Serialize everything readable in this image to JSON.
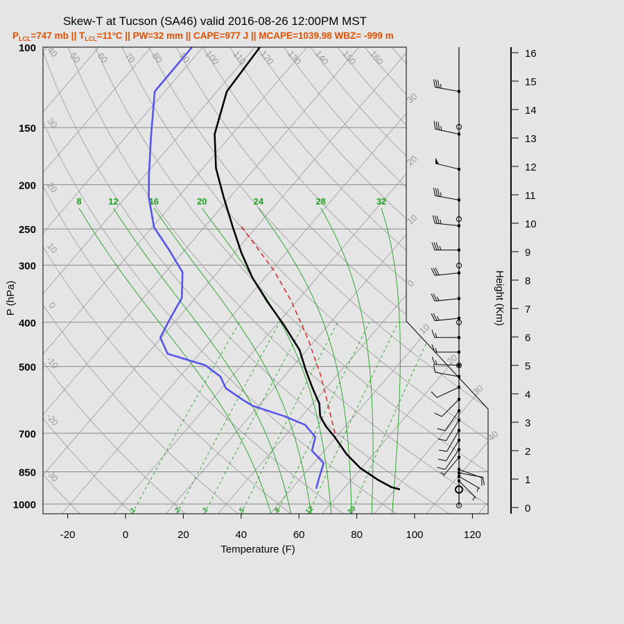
{
  "title": "Skew-T at Tucson (SA46) valid 2016-08-26 12:00PM MST",
  "subtitle": {
    "p": "P",
    "p_sub": "LCL",
    "p_val": "=747 mb || T",
    "t_sub": "LCL",
    "t_val": "=11",
    "deg": "o",
    "rest": "C || PW=32 mm || CAPE=977 J || MCAPE=1039.98 WBZ= -999 m"
  },
  "colors": {
    "temperature": "#000000",
    "dewpoint": "#5555ee",
    "parcel": "#e02020",
    "moist_adiabat": "#1ea01e",
    "mixing_ratio": "#1ea01e",
    "grid": "#999999",
    "subtitle": "#e05000"
  },
  "chart_data": {
    "type": "line",
    "chart_kind": "skew-T log-P",
    "xlabel": "Temperature (F)",
    "ylabel": "P (hPa)",
    "y2label": "Height (Km)",
    "x_ticks": [
      "-20",
      "0",
      "20",
      "40",
      "60",
      "80",
      "100",
      "120"
    ],
    "x_tick_values": [
      -20,
      0,
      20,
      40,
      60,
      80,
      100,
      120
    ],
    "xlim_F_at_bottom": [
      -29,
      125
    ],
    "ylim_hPa": [
      1050,
      100
    ],
    "y_scale": "log",
    "y_ticks": [
      "100",
      "150",
      "200",
      "250",
      "300",
      "400",
      "500",
      "700",
      "850",
      "1000"
    ],
    "y_tick_values": [
      100,
      150,
      200,
      250,
      300,
      400,
      500,
      700,
      850,
      1000
    ],
    "height_ticks": [
      "0",
      "1",
      "2",
      "3",
      "4",
      "5",
      "6",
      "7",
      "8",
      "9",
      "10",
      "11",
      "12",
      "13",
      "14",
      "15",
      "16"
    ],
    "isotherm_labels_C": [
      "30",
      "20",
      "10",
      "0",
      "10",
      "20",
      "30",
      "40"
    ],
    "isotherm_label_values_C": [
      -30,
      -20,
      -10,
      0,
      10,
      20,
      30,
      40
    ],
    "dry_adiabat_left_labels": [
      "40",
      "30",
      "20",
      "10",
      "0",
      "-10",
      "-20",
      "-30"
    ],
    "dry_adiabat_left_values_C": [
      40,
      30,
      20,
      10,
      0,
      -10,
      -20,
      -30
    ],
    "dry_adiabat_top_labels": [
      "50",
      "60",
      "70",
      "80",
      "90",
      "100",
      "110",
      "120",
      "130",
      "140",
      "150",
      "160"
    ],
    "dry_adiabat_top_values_C": [
      50,
      60,
      70,
      80,
      90,
      100,
      110,
      120,
      130,
      140,
      150,
      160
    ],
    "moist_adiabat_labels": [
      "8",
      "12",
      "16",
      "20",
      "24",
      "28",
      "32"
    ],
    "moist_adiabat_values_C": [
      8,
      12,
      16,
      20,
      24,
      28,
      32
    ],
    "mixing_ratio_labels": [
      "1",
      "2",
      "3",
      "5",
      "8",
      "12",
      "20"
    ],
    "mixing_ratio_values_gkg": [
      1,
      2,
      3,
      5,
      8,
      12,
      20
    ],
    "series": [
      {
        "name": "temperature",
        "p": [
          100,
          125,
          155,
          184,
          213,
          250,
          282,
          319,
          360,
          407,
          460,
          511,
          558,
          603,
          642,
          676,
          713,
          778,
          834,
          885,
          919,
          929
        ],
        "t_F": [
          -92.3,
          -90.6,
          -82.1,
          -71.5,
          -60.2,
          -47.4,
          -37.5,
          -26.5,
          -14.2,
          -1.0,
          11.5,
          19.9,
          27.4,
          34.3,
          38.3,
          43.3,
          49.5,
          58.8,
          67.6,
          77.2,
          84.2,
          87.7
        ]
      },
      {
        "name": "dewpoint",
        "p": [
          100,
          125,
          156,
          189,
          213,
          248,
          277,
          311,
          354,
          393,
          432,
          469,
          497,
          526,
          558,
          594,
          609,
          642,
          671,
          713,
          764,
          814,
          879,
          926
        ],
        "t_F": [
          -115.8,
          -115.5,
          -103.7,
          -93.1,
          -86.1,
          -75.3,
          -63.7,
          -52.1,
          -44.7,
          -42.6,
          -40.4,
          -33.0,
          -16.5,
          -8.0,
          -2.6,
          7.4,
          11.7,
          25.8,
          35.7,
          42.8,
          45.7,
          53.5,
          56.4,
          58.5
        ]
      },
      {
        "name": "parcel",
        "p": [
          247,
          308,
          360,
          437,
          520,
          598,
          700
        ],
        "t_F": [
          -45.3,
          -21.1,
          -5.8,
          11.5,
          25.9,
          36.6,
          48.5
        ]
      }
    ],
    "wind_barbs": [
      {
        "p": 125,
        "dir": 280,
        "kt": 35
      },
      {
        "p": 155,
        "dir": 282,
        "kt": 35
      },
      {
        "p": 185,
        "dir": 284,
        "kt": 50
      },
      {
        "p": 216,
        "dir": 280,
        "kt": 35
      },
      {
        "p": 246,
        "dir": 276,
        "kt": 35
      },
      {
        "p": 278,
        "dir": 270,
        "kt": 35
      },
      {
        "p": 312,
        "dir": 264,
        "kt": 30
      },
      {
        "p": 355,
        "dir": 264,
        "kt": 25
      },
      {
        "p": 392,
        "dir": 264,
        "kt": 25
      },
      {
        "p": 432,
        "dir": 270,
        "kt": 15
      },
      {
        "p": 465,
        "dir": 270,
        "kt": 15
      },
      {
        "p": 497,
        "dir": 272,
        "kt": 15
      },
      {
        "p": 526,
        "dir": 280,
        "kt": 10
      },
      {
        "p": 555,
        "dir": 245,
        "kt": 10
      },
      {
        "p": 590,
        "dir": 225,
        "kt": 10
      },
      {
        "p": 625,
        "dir": 215,
        "kt": 10
      },
      {
        "p": 655,
        "dir": 212,
        "kt": 10
      },
      {
        "p": 690,
        "dir": 210,
        "kt": 10
      },
      {
        "p": 725,
        "dir": 212,
        "kt": 10
      },
      {
        "p": 760,
        "dir": 215,
        "kt": 10
      },
      {
        "p": 790,
        "dir": 220,
        "kt": 5
      },
      {
        "p": 840,
        "dir": 110,
        "kt": 10
      },
      {
        "p": 855,
        "dir": 100,
        "kt": 10
      },
      {
        "p": 870,
        "dir": 120,
        "kt": 5
      },
      {
        "p": 890,
        "dir": 135,
        "kt": 5
      }
    ]
  }
}
